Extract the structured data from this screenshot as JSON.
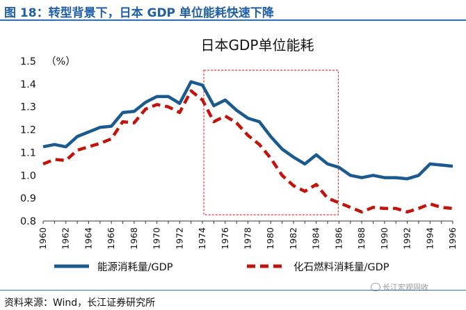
{
  "figure_title": "图 18：转型背景下，日本 GDP 单位能耗快速下降",
  "source_text": "资料来源：Wind，长江证券研究所",
  "watermark_text": "长江宏观固收",
  "colors": {
    "header_blue": "#1f5fa8",
    "energy_line": "#1a5a8f",
    "fossil_line": "#c0140c",
    "highlight_box": "#e03a3a"
  },
  "chart_data": {
    "type": "line",
    "title": "日本GDP单位能耗",
    "unit_label": "（%）",
    "xlabel": "",
    "ylabel": "",
    "x": [
      1960,
      1961,
      1962,
      1963,
      1964,
      1965,
      1966,
      1967,
      1968,
      1969,
      1970,
      1971,
      1972,
      1973,
      1974,
      1975,
      1976,
      1977,
      1978,
      1979,
      1980,
      1981,
      1982,
      1983,
      1984,
      1985,
      1986,
      1987,
      1988,
      1989,
      1990,
      1991,
      1992,
      1993,
      1994,
      1995,
      1996
    ],
    "xticks": [
      "1960",
      "1962",
      "1964",
      "1966",
      "1968",
      "1970",
      "1972",
      "1974",
      "1976",
      "1978",
      "1980",
      "1982",
      "1984",
      "1986",
      "1988",
      "1990",
      "1992",
      "1994",
      "1996"
    ],
    "ylim": [
      0.8,
      1.5
    ],
    "yticks": [
      "0.8",
      "0.9",
      "1.0",
      "1.1",
      "1.2",
      "1.3",
      "1.4",
      "1.5"
    ],
    "highlight_range": [
      1974,
      1986
    ],
    "series": [
      {
        "name": "能源消耗量/GDP",
        "style": "solid",
        "values": [
          1.125,
          1.135,
          1.125,
          1.17,
          1.19,
          1.21,
          1.215,
          1.275,
          1.28,
          1.32,
          1.345,
          1.345,
          1.315,
          1.41,
          1.395,
          1.305,
          1.33,
          1.285,
          1.25,
          1.235,
          1.17,
          1.115,
          1.08,
          1.05,
          1.09,
          1.05,
          1.035,
          1.0,
          0.99,
          1.0,
          0.99,
          0.99,
          0.985,
          1.0,
          1.05,
          1.045,
          1.04
        ]
      },
      {
        "name": "化石燃料消耗量/GDP",
        "style": "dashed",
        "values": [
          1.05,
          1.07,
          1.065,
          1.11,
          1.125,
          1.14,
          1.16,
          1.235,
          1.23,
          1.29,
          1.31,
          1.3,
          1.275,
          1.37,
          1.33,
          1.235,
          1.26,
          1.23,
          1.175,
          1.135,
          1.075,
          1.0,
          0.955,
          0.93,
          0.96,
          0.9,
          0.88,
          0.86,
          0.84,
          0.86,
          0.855,
          0.855,
          0.84,
          0.855,
          0.875,
          0.86,
          0.855
        ]
      }
    ]
  }
}
